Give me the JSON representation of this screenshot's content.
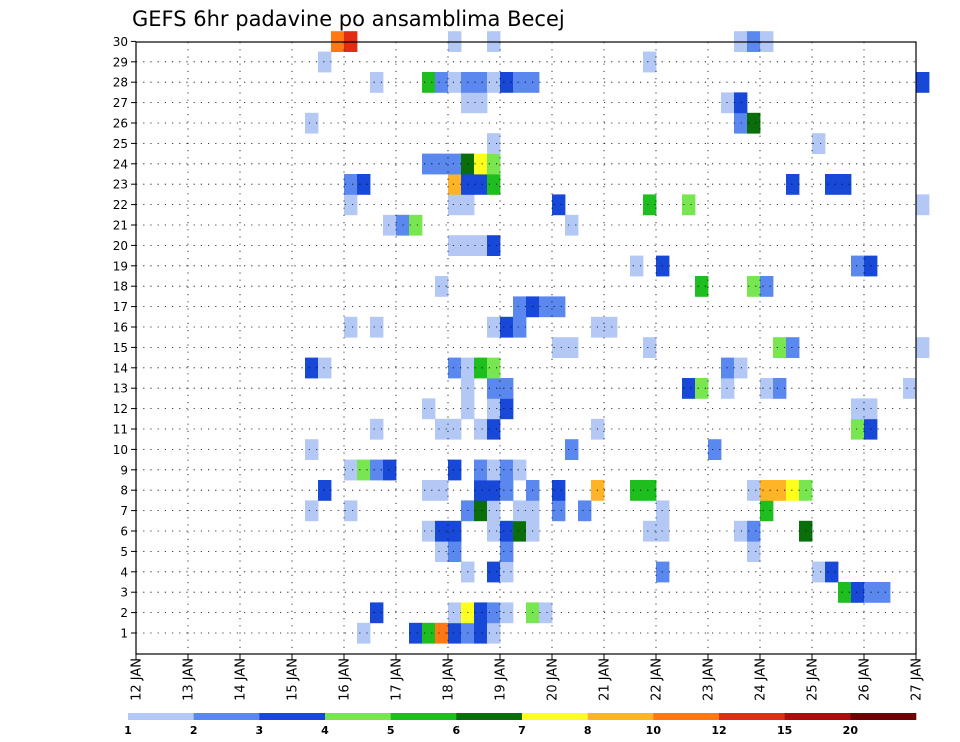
{
  "chart_data": {
    "type": "heatmap",
    "title": "GEFS 6hr padavine po ansamblima Becej",
    "xlabel": "",
    "ylabel": "",
    "x_range": [
      "12 JAN 00Z",
      "27 JAN 00Z"
    ],
    "x_step_hours": 6,
    "y_range": [
      1,
      30
    ],
    "x_tick_labels": [
      "12 JAN",
      "13 JAN",
      "14 JAN",
      "15 JAN",
      "16 JAN",
      "17 JAN",
      "18 JAN",
      "19 JAN",
      "20 JAN",
      "21 JAN",
      "22 JAN",
      "23 JAN",
      "24 JAN",
      "25 JAN",
      "26 JAN",
      "27 JAN"
    ],
    "y_tick_labels": [
      "1",
      "2",
      "3",
      "4",
      "5",
      "6",
      "7",
      "8",
      "9",
      "10",
      "11",
      "12",
      "13",
      "14",
      "15",
      "16",
      "17",
      "18",
      "19",
      "20",
      "21",
      "22",
      "23",
      "24",
      "25",
      "26",
      "27",
      "28",
      "29",
      "30"
    ],
    "grid": true,
    "colorbar": {
      "placement": "bottom",
      "labels": [
        "1",
        "2",
        "3",
        "4",
        "5",
        "6",
        "7",
        "8",
        "10",
        "12",
        "15",
        "20"
      ],
      "colors": [
        "#b4c8f5",
        "#5a88ee",
        "#1848d8",
        "#78e650",
        "#1ebe1e",
        "#0a6e0a",
        "#ffff1e",
        "#ffb428",
        "#ff7814",
        "#e12d14",
        "#aa0f0f",
        "#6e0505"
      ]
    },
    "cells": [
      [
        1,
        16.25,
        1
      ],
      [
        1,
        17.25,
        3
      ],
      [
        1,
        17.5,
        5
      ],
      [
        1,
        17.75,
        9
      ],
      [
        1,
        18.0,
        3
      ],
      [
        1,
        18.25,
        2
      ],
      [
        1,
        18.5,
        3
      ],
      [
        1,
        18.75,
        1
      ],
      [
        2,
        16.5,
        3
      ],
      [
        2,
        18.0,
        1
      ],
      [
        2,
        18.25,
        7
      ],
      [
        2,
        18.5,
        3
      ],
      [
        2,
        18.75,
        2
      ],
      [
        2,
        19.0,
        1
      ],
      [
        2,
        19.5,
        4
      ],
      [
        2,
        19.75,
        1
      ],
      [
        3,
        25.5,
        5
      ],
      [
        3,
        25.75,
        3
      ],
      [
        3,
        26.0,
        2
      ],
      [
        3,
        26.25,
        2
      ],
      [
        4,
        18.25,
        1
      ],
      [
        4,
        18.75,
        3
      ],
      [
        4,
        19.0,
        1
      ],
      [
        4,
        22.0,
        2
      ],
      [
        4,
        25.0,
        1
      ],
      [
        4,
        25.25,
        3
      ],
      [
        5,
        17.75,
        1
      ],
      [
        5,
        18.0,
        2
      ],
      [
        5,
        19.0,
        2
      ],
      [
        5,
        23.75,
        1
      ],
      [
        6,
        17.5,
        1
      ],
      [
        6,
        17.75,
        3
      ],
      [
        6,
        18.0,
        3
      ],
      [
        6,
        18.75,
        1
      ],
      [
        6,
        19.0,
        3
      ],
      [
        6,
        19.25,
        6
      ],
      [
        6,
        19.5,
        1
      ],
      [
        6,
        21.75,
        1
      ],
      [
        6,
        22.0,
        1
      ],
      [
        6,
        23.5,
        1
      ],
      [
        6,
        23.75,
        2
      ],
      [
        6,
        24.75,
        6
      ],
      [
        7,
        15.25,
        1
      ],
      [
        7,
        16.0,
        1
      ],
      [
        7,
        18.25,
        2
      ],
      [
        7,
        18.5,
        6
      ],
      [
        7,
        18.75,
        1
      ],
      [
        7,
        19.25,
        1
      ],
      [
        7,
        19.5,
        1
      ],
      [
        7,
        20.0,
        2
      ],
      [
        7,
        20.5,
        2
      ],
      [
        7,
        22.0,
        1
      ],
      [
        7,
        24.0,
        5
      ],
      [
        8,
        15.5,
        3
      ],
      [
        8,
        17.5,
        1
      ],
      [
        8,
        17.75,
        1
      ],
      [
        8,
        18.5,
        3
      ],
      [
        8,
        18.75,
        3
      ],
      [
        8,
        19.0,
        2
      ],
      [
        8,
        19.5,
        2
      ],
      [
        8,
        20.0,
        3
      ],
      [
        8,
        20.75,
        8
      ],
      [
        8,
        21.5,
        5
      ],
      [
        8,
        21.75,
        5
      ],
      [
        8,
        23.75,
        1
      ],
      [
        8,
        24.0,
        8
      ],
      [
        8,
        24.25,
        8
      ],
      [
        8,
        24.5,
        7
      ],
      [
        8,
        24.75,
        4
      ],
      [
        9,
        16.0,
        1
      ],
      [
        9,
        16.25,
        4
      ],
      [
        9,
        16.5,
        2
      ],
      [
        9,
        16.75,
        3
      ],
      [
        9,
        18.0,
        3
      ],
      [
        9,
        18.5,
        2
      ],
      [
        9,
        18.75,
        1
      ],
      [
        9,
        19.0,
        2
      ],
      [
        9,
        19.25,
        1
      ],
      [
        10,
        15.25,
        1
      ],
      [
        10,
        20.25,
        2
      ],
      [
        10,
        23.0,
        2
      ],
      [
        11,
        16.5,
        1
      ],
      [
        11,
        17.75,
        1
      ],
      [
        11,
        18.0,
        1
      ],
      [
        11,
        18.5,
        1
      ],
      [
        11,
        18.75,
        3
      ],
      [
        11,
        20.75,
        1
      ],
      [
        11,
        25.75,
        4
      ],
      [
        11,
        26.0,
        3
      ],
      [
        12,
        17.5,
        1
      ],
      [
        12,
        18.25,
        1
      ],
      [
        12,
        18.75,
        1
      ],
      [
        12,
        19.0,
        3
      ],
      [
        12,
        25.75,
        1
      ],
      [
        12,
        26.0,
        1
      ],
      [
        13,
        18.25,
        1
      ],
      [
        13,
        18.75,
        2
      ],
      [
        13,
        19.0,
        2
      ],
      [
        13,
        22.5,
        3
      ],
      [
        13,
        22.75,
        4
      ],
      [
        13,
        23.25,
        1
      ],
      [
        13,
        24.0,
        1
      ],
      [
        13,
        24.25,
        2
      ],
      [
        13,
        26.75,
        1
      ],
      [
        14,
        15.25,
        3
      ],
      [
        14,
        15.5,
        1
      ],
      [
        14,
        18.0,
        2
      ],
      [
        14,
        18.25,
        1
      ],
      [
        14,
        18.5,
        5
      ],
      [
        14,
        18.75,
        4
      ],
      [
        14,
        23.25,
        2
      ],
      [
        14,
        23.5,
        1
      ],
      [
        15,
        20.0,
        1
      ],
      [
        15,
        20.25,
        1
      ],
      [
        15,
        21.75,
        1
      ],
      [
        15,
        24.25,
        4
      ],
      [
        15,
        24.5,
        2
      ],
      [
        15,
        27.0,
        1
      ],
      [
        16,
        16.0,
        1
      ],
      [
        16,
        16.5,
        1
      ],
      [
        16,
        18.75,
        1
      ],
      [
        16,
        19.0,
        3
      ],
      [
        16,
        19.25,
        2
      ],
      [
        16,
        20.75,
        1
      ],
      [
        16,
        21.0,
        1
      ],
      [
        17,
        19.25,
        2
      ],
      [
        17,
        19.5,
        3
      ],
      [
        17,
        19.75,
        2
      ],
      [
        17,
        20.0,
        2
      ],
      [
        18,
        17.75,
        1
      ],
      [
        18,
        22.75,
        5
      ],
      [
        18,
        23.75,
        4
      ],
      [
        18,
        24.0,
        2
      ],
      [
        19,
        21.5,
        1
      ],
      [
        19,
        22.0,
        3
      ],
      [
        19,
        25.75,
        2
      ],
      [
        19,
        26.0,
        3
      ],
      [
        20,
        18.0,
        1
      ],
      [
        20,
        18.25,
        1
      ],
      [
        20,
        18.5,
        1
      ],
      [
        20,
        18.75,
        3
      ],
      [
        21,
        16.75,
        1
      ],
      [
        21,
        17.0,
        2
      ],
      [
        21,
        17.25,
        4
      ],
      [
        21,
        20.25,
        1
      ],
      [
        22,
        16.0,
        1
      ],
      [
        22,
        18.0,
        1
      ],
      [
        22,
        18.25,
        1
      ],
      [
        22,
        20.0,
        3
      ],
      [
        22,
        21.75,
        5
      ],
      [
        22,
        22.5,
        4
      ],
      [
        22,
        27.0,
        1
      ],
      [
        23,
        16.0,
        2
      ],
      [
        23,
        16.25,
        3
      ],
      [
        23,
        18.0,
        8
      ],
      [
        23,
        18.25,
        3
      ],
      [
        23,
        18.5,
        3
      ],
      [
        23,
        18.75,
        5
      ],
      [
        23,
        24.5,
        3
      ],
      [
        23,
        25.25,
        3
      ],
      [
        23,
        25.5,
        3
      ],
      [
        24,
        17.5,
        2
      ],
      [
        24,
        17.75,
        2
      ],
      [
        24,
        18.0,
        2
      ],
      [
        24,
        18.25,
        6
      ],
      [
        24,
        18.5,
        7
      ],
      [
        24,
        18.75,
        4
      ],
      [
        25,
        18.75,
        1
      ],
      [
        25,
        25.0,
        1
      ],
      [
        26,
        15.25,
        1
      ],
      [
        26,
        23.5,
        2
      ],
      [
        26,
        23.75,
        6
      ],
      [
        27,
        18.25,
        1
      ],
      [
        27,
        18.5,
        1
      ],
      [
        27,
        23.25,
        1
      ],
      [
        27,
        23.5,
        3
      ],
      [
        28,
        16.5,
        1
      ],
      [
        28,
        17.5,
        5
      ],
      [
        28,
        17.75,
        2
      ],
      [
        28,
        18.0,
        1
      ],
      [
        28,
        18.25,
        2
      ],
      [
        28,
        18.5,
        2
      ],
      [
        28,
        18.75,
        1
      ],
      [
        28,
        19.0,
        3
      ],
      [
        28,
        19.25,
        2
      ],
      [
        28,
        19.5,
        2
      ],
      [
        28,
        27.0,
        3
      ],
      [
        29,
        15.5,
        1
      ],
      [
        29,
        21.75,
        1
      ],
      [
        30,
        15.75,
        9
      ],
      [
        30,
        16.0,
        10
      ],
      [
        30,
        18.0,
        1
      ],
      [
        30,
        18.75,
        1
      ],
      [
        30,
        23.5,
        1
      ],
      [
        30,
        23.75,
        2
      ],
      [
        30,
        24.0,
        1
      ]
    ]
  }
}
